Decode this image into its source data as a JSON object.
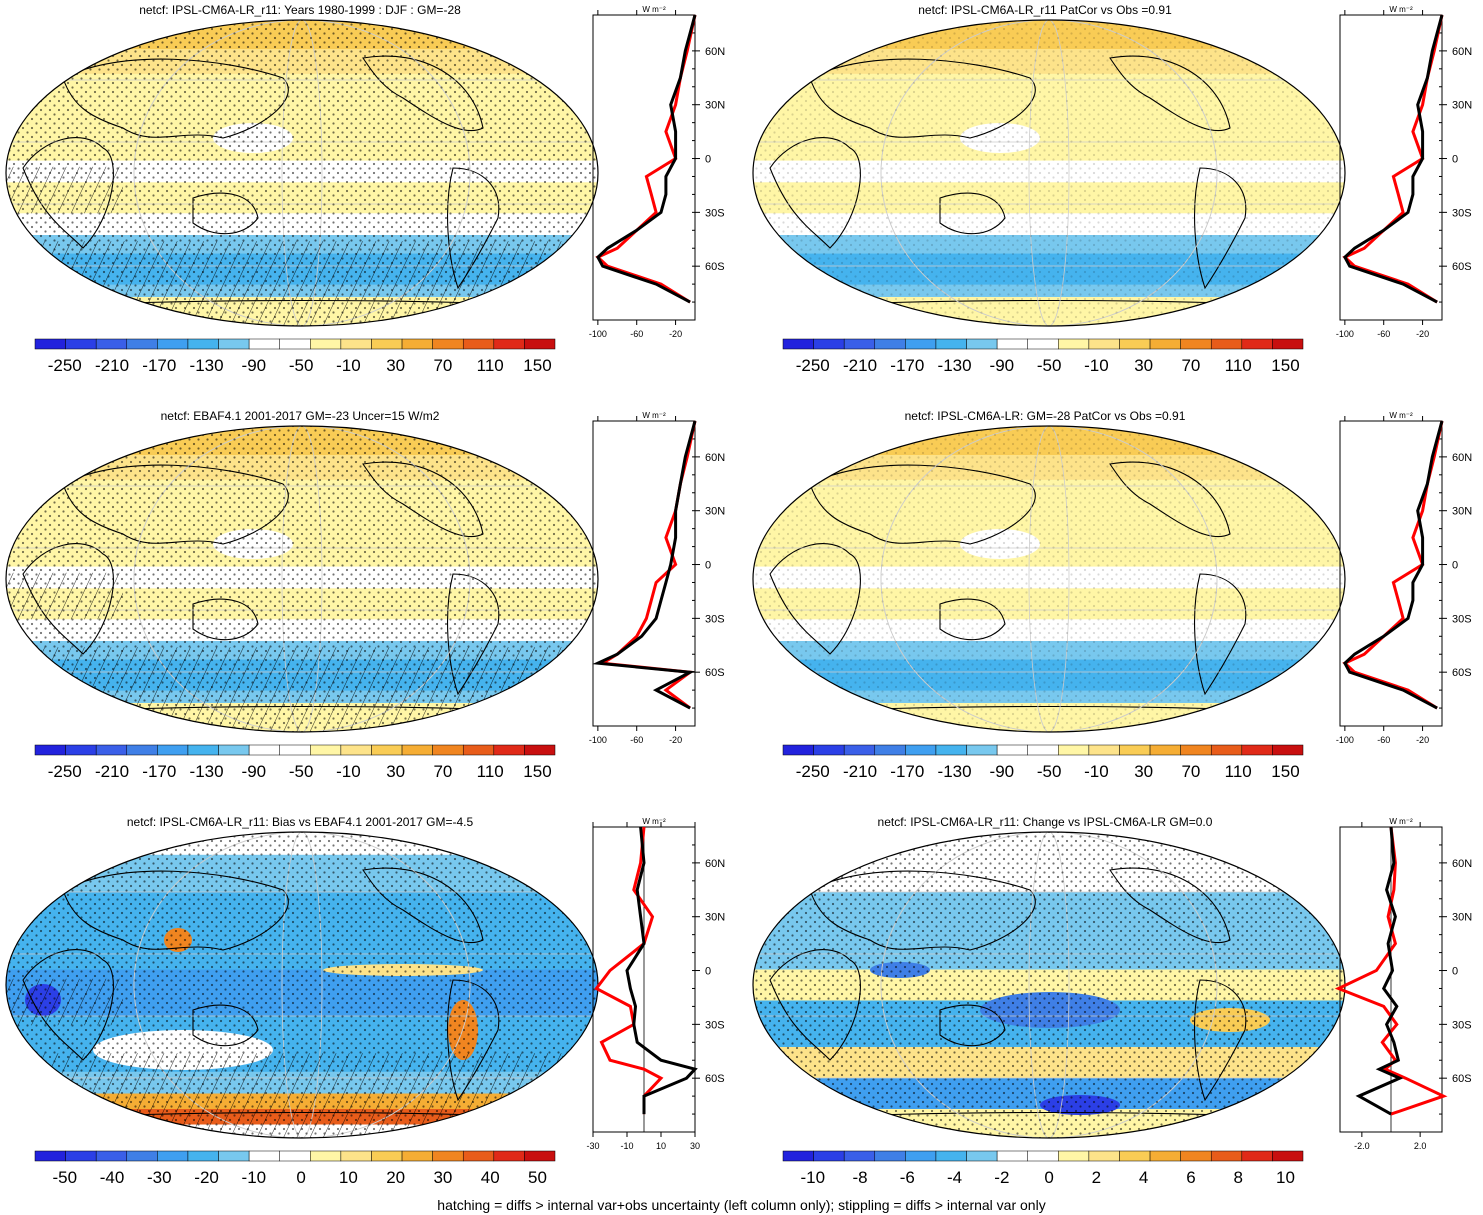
{
  "footnote": "hatching = diffs > internal var+obs uncertainty (left column only); stippling = diffs > internal var only",
  "colors": {
    "scale": [
      "#2222dd",
      "#2b3fe6",
      "#3a5fe8",
      "#3f7fe6",
      "#3f9ff0",
      "#45b3ee",
      "#78c8ee",
      "#ffffff",
      "#ffffff",
      "#fff6a6",
      "#fde38a",
      "#f9cc55",
      "#f5ad34",
      "#f08520",
      "#e85c1a",
      "#e02a18",
      "#c80f0f"
    ],
    "land_outline": "#000000",
    "zonal_model": "#000000",
    "zonal_obs": "#ff0000",
    "zonal_ensemble": "#1e3cff"
  },
  "panels": [
    {
      "id": "p1",
      "title": "netcf: IPSL-CM6A-LR_r11: Years 1980-1999 : DJF : GM=-28",
      "kind": "absolute",
      "colorbar_labels": [
        "-250",
        "-210",
        "-170",
        "-130",
        "-90",
        "-50",
        "-10",
        "30",
        "70",
        "110",
        "150"
      ],
      "zonal_xticks": [
        "-100",
        "-60",
        "-20"
      ],
      "zonal_unit": "W m⁻²",
      "lat_labels": [
        "60N",
        "30N",
        "0",
        "30S",
        "60S"
      ],
      "hatched": true
    },
    {
      "id": "p2",
      "title": "netcf: IPSL-CM6A-LR_r11 PatCor vs Obs =0.91",
      "kind": "absolute",
      "colorbar_labels": [
        "-250",
        "-210",
        "-170",
        "-130",
        "-90",
        "-50",
        "-10",
        "30",
        "70",
        "110",
        "150"
      ],
      "zonal_xticks": [
        "-100",
        "-60",
        "-20"
      ],
      "zonal_unit": "W m⁻²",
      "lat_labels": [
        "60N",
        "30N",
        "0",
        "30S",
        "60S"
      ],
      "hatched": false
    },
    {
      "id": "p3",
      "title": "netcf: EBAF4.1 2001-2017 GM=-23 Uncer=15 W/m2",
      "kind": "absolute",
      "colorbar_labels": [
        "-250",
        "-210",
        "-170",
        "-130",
        "-90",
        "-50",
        "-10",
        "30",
        "70",
        "110",
        "150"
      ],
      "zonal_xticks": [
        "-100",
        "-60",
        "-20"
      ],
      "zonal_unit": "W m⁻²",
      "lat_labels": [
        "60N",
        "30N",
        "0",
        "30S",
        "60S"
      ],
      "hatched": true
    },
    {
      "id": "p4",
      "title": "netcf: IPSL-CM6A-LR: GM=-28 PatCor vs Obs =0.91",
      "kind": "absolute",
      "colorbar_labels": [
        "-250",
        "-210",
        "-170",
        "-130",
        "-90",
        "-50",
        "-10",
        "30",
        "70",
        "110",
        "150"
      ],
      "zonal_xticks": [
        "-100",
        "-60",
        "-20"
      ],
      "zonal_unit": "W m⁻²",
      "lat_labels": [
        "60N",
        "30N",
        "0",
        "30S",
        "60S"
      ],
      "hatched": false
    },
    {
      "id": "p5",
      "title": "netcf: IPSL-CM6A-LR_r11: Bias vs EBAF4.1 2001-2017 GM=-4.5",
      "kind": "bias",
      "colorbar_labels": [
        "-50",
        "-40",
        "-30",
        "-20",
        "-10",
        "0",
        "10",
        "20",
        "30",
        "40",
        "50"
      ],
      "zonal_xticks": [
        "-30",
        "-10",
        "10",
        "30"
      ],
      "zonal_unit": "W m⁻²",
      "lat_labels": [
        "60N",
        "30N",
        "0",
        "30S",
        "60S"
      ],
      "hatched": true
    },
    {
      "id": "p6",
      "title": "netcf: IPSL-CM6A-LR_r11: Change vs IPSL-CM6A-LR GM=0.0",
      "kind": "change",
      "colorbar_labels": [
        "-10",
        "-8",
        "-6",
        "-4",
        "-2",
        "0",
        "2",
        "4",
        "6",
        "8",
        "10"
      ],
      "zonal_xticks": [
        "-2.0",
        "2.0"
      ],
      "zonal_unit": "W m⁻²",
      "lat_labels": [
        "60N",
        "30N",
        "0",
        "30S",
        "60S"
      ],
      "hatched": false
    }
  ],
  "chart_data": [
    {
      "type": "heatmap",
      "title": "netcf: IPSL-CM6A-LR_r11: Years 1980-1999 : DJF : GM=-28",
      "colorbar_range": [
        -270,
        170
      ],
      "zonal_mean": {
        "lat": [
          80,
          60,
          45,
          30,
          15,
          0,
          -10,
          -20,
          -30,
          -40,
          -50,
          -55,
          -60,
          -70,
          -80
        ],
        "series": [
          {
            "name": "model",
            "values": [
              0,
              -10,
              -15,
              -25,
              -20,
              -20,
              -30,
              -30,
              -35,
              -60,
              -90,
              -100,
              -95,
              -40,
              -5
            ]
          },
          {
            "name": "obs",
            "values": [
              0,
              -8,
              -15,
              -20,
              -30,
              -20,
              -50,
              -45,
              -40,
              -60,
              -80,
              -100,
              -90,
              -35,
              -5
            ]
          }
        ],
        "xlim": [
          -105,
          0
        ]
      }
    },
    {
      "type": "heatmap",
      "title": "netcf: IPSL-CM6A-LR_r11 PatCor vs Obs =0.91",
      "colorbar_range": [
        -270,
        170
      ],
      "zonal_mean": {
        "lat": [
          80,
          60,
          45,
          30,
          15,
          0,
          -10,
          -20,
          -30,
          -40,
          -50,
          -55,
          -60,
          -70,
          -80
        ],
        "series": [
          {
            "name": "model",
            "values": [
              0,
              -10,
              -15,
              -25,
              -20,
              -20,
              -30,
              -30,
              -35,
              -60,
              -90,
              -100,
              -95,
              -40,
              -5
            ]
          },
          {
            "name": "obs",
            "values": [
              0,
              -8,
              -15,
              -20,
              -30,
              -20,
              -50,
              -45,
              -40,
              -60,
              -80,
              -100,
              -90,
              -35,
              -5
            ]
          }
        ],
        "xlim": [
          -105,
          0
        ]
      }
    },
    {
      "type": "heatmap",
      "title": "netcf: EBAF4.1 2001-2017 GM=-23 Uncer=15 W/m2",
      "colorbar_range": [
        -270,
        170
      ],
      "zonal_mean": {
        "lat": [
          80,
          60,
          45,
          30,
          15,
          0,
          -10,
          -20,
          -30,
          -40,
          -50,
          -55,
          -60,
          -70,
          -80
        ],
        "series": [
          {
            "name": "model",
            "values": [
              0,
              -10,
              -15,
              -20,
              -20,
              -25,
              -30,
              -35,
              -40,
              -55,
              -80,
              -100,
              -5,
              -40,
              -5
            ]
          },
          {
            "name": "obs",
            "values": [
              0,
              -8,
              -15,
              -20,
              -30,
              -20,
              -40,
              -45,
              -50,
              -60,
              -80,
              -95,
              -5,
              -30,
              -5
            ]
          }
        ],
        "xlim": [
          -105,
          0
        ]
      }
    },
    {
      "type": "heatmap",
      "title": "netcf: IPSL-CM6A-LR: GM=-28 PatCor vs Obs =0.91",
      "colorbar_range": [
        -270,
        170
      ],
      "zonal_mean": {
        "lat": [
          80,
          60,
          45,
          30,
          15,
          0,
          -10,
          -20,
          -30,
          -40,
          -50,
          -55,
          -60,
          -70,
          -80
        ],
        "series": [
          {
            "name": "model",
            "values": [
              0,
              -10,
              -15,
              -25,
              -20,
              -20,
              -30,
              -30,
              -35,
              -60,
              -90,
              -100,
              -95,
              -40,
              -5
            ]
          },
          {
            "name": "obs",
            "values": [
              0,
              -8,
              -15,
              -20,
              -30,
              -20,
              -50,
              -45,
              -40,
              -60,
              -80,
              -100,
              -90,
              -35,
              -5
            ]
          }
        ],
        "xlim": [
          -105,
          0
        ]
      }
    },
    {
      "type": "heatmap",
      "title": "netcf: IPSL-CM6A-LR_r11: Bias vs EBAF4.1 2001-2017 GM=-4.5",
      "colorbar_range": [
        -55,
        55
      ],
      "zonal_mean": {
        "lat": [
          80,
          60,
          45,
          30,
          15,
          0,
          -10,
          -20,
          -30,
          -40,
          -50,
          -55,
          -60,
          -70,
          -80
        ],
        "series": [
          {
            "name": "model",
            "values": [
              -2,
              0,
              -4,
              -2,
              0,
              -10,
              -8,
              -5,
              -6,
              -4,
              10,
              30,
              25,
              0,
              0
            ]
          },
          {
            "name": "obs",
            "values": [
              0,
              -2,
              -6,
              5,
              0,
              -20,
              -28,
              -8,
              -6,
              -25,
              -20,
              0,
              10,
              0,
              0
            ]
          }
        ],
        "xlim": [
          -30,
          30
        ]
      }
    },
    {
      "type": "heatmap",
      "title": "netcf: IPSL-CM6A-LR_r11: Change vs IPSL-CM6A-LR GM=0.0",
      "colorbar_range": [
        -11,
        11
      ],
      "zonal_mean": {
        "lat": [
          80,
          60,
          45,
          30,
          15,
          0,
          -10,
          -20,
          -30,
          -40,
          -50,
          -55,
          -60,
          -70,
          -80
        ],
        "series": [
          {
            "name": "model",
            "values": [
              0,
              0.2,
              -0.3,
              0.3,
              -0.2,
              0.1,
              -0.5,
              0.4,
              -0.3,
              0.2,
              0.5,
              -0.8,
              0.6,
              -2.2,
              0
            ]
          },
          {
            "name": "obs",
            "values": [
              0,
              0.3,
              0.2,
              -0.2,
              0.3,
              -1.0,
              -3.6,
              -0.5,
              0.4,
              -0.6,
              0.3,
              -0.4,
              1.0,
              3.6,
              0
            ]
          }
        ],
        "xlim": [
          -3.5,
          3.5
        ]
      }
    }
  ]
}
